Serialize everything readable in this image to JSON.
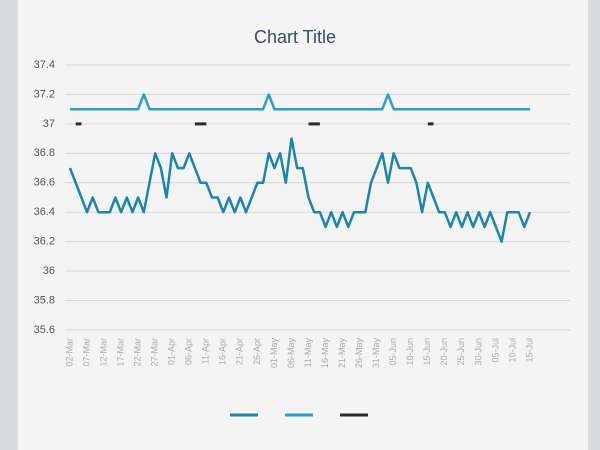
{
  "chart_data": {
    "type": "line",
    "title": "Chart Title",
    "categories": [
      "02-Mar",
      null,
      null,
      "07-Mar",
      null,
      null,
      "12-Mar",
      null,
      null,
      "17-Mar",
      null,
      null,
      "22-Mar",
      null,
      null,
      "27-Mar",
      null,
      null,
      "01-Apr",
      null,
      null,
      "06-Apr",
      null,
      null,
      "11-Apr",
      null,
      null,
      "16-Apr",
      null,
      null,
      "21-Apr",
      null,
      null,
      "26-Apr",
      null,
      null,
      "01-May",
      null,
      null,
      "06-May",
      null,
      null,
      "11-May",
      null,
      null,
      "16-May",
      null,
      null,
      "21-May",
      null,
      null,
      "26-May",
      null,
      null,
      "31-May",
      null,
      null,
      "05-Jun",
      null,
      null,
      "10-Jun",
      null,
      null,
      "15-Jun",
      null,
      null,
      "20-Jun",
      null,
      null,
      "25-Jun",
      null,
      null,
      "30-Jun",
      null,
      null,
      "05-Jul",
      null,
      null,
      "10-Jul",
      null,
      null,
      "15-Jul"
    ],
    "series": [
      {
        "color": "#1b86ad",
        "values": [
          36.7,
          36.6,
          36.5,
          36.4,
          36.5,
          36.4,
          36.4,
          36.4,
          36.5,
          36.4,
          36.5,
          36.4,
          36.5,
          36.4,
          36.6,
          36.8,
          36.7,
          36.5,
          36.8,
          36.7,
          36.7,
          36.8,
          36.7,
          36.6,
          36.6,
          36.5,
          36.5,
          36.4,
          36.5,
          36.4,
          36.5,
          36.4,
          36.5,
          36.6,
          36.6,
          36.8,
          36.7,
          36.8,
          36.6,
          36.9,
          36.7,
          36.7,
          36.5,
          36.4,
          36.4,
          36.3,
          36.4,
          36.3,
          36.4,
          36.3,
          36.4,
          36.4,
          36.4,
          36.6,
          36.7,
          36.8,
          36.6,
          36.8,
          36.7,
          36.7,
          36.7,
          36.6,
          36.4,
          36.6,
          36.5,
          36.4,
          36.4,
          36.3,
          36.4,
          36.3,
          36.4,
          36.3,
          36.4,
          36.3,
          36.4,
          36.3,
          36.2,
          36.4,
          36.4,
          36.4,
          36.3,
          36.4
        ]
      },
      {
        "color": "#2b9fc8",
        "values": [
          37.1,
          37.1,
          37.1,
          37.1,
          37.1,
          37.1,
          37.1,
          37.1,
          37.1,
          37.1,
          37.1,
          37.1,
          37.1,
          37.2,
          37.1,
          37.1,
          37.1,
          37.1,
          37.1,
          37.1,
          37.1,
          37.1,
          37.1,
          37.1,
          37.1,
          37.1,
          37.1,
          37.1,
          37.1,
          37.1,
          37.1,
          37.1,
          37.1,
          37.1,
          37.1,
          37.2,
          37.1,
          37.1,
          37.1,
          37.1,
          37.1,
          37.1,
          37.1,
          37.1,
          37.1,
          37.1,
          37.1,
          37.1,
          37.1,
          37.1,
          37.1,
          37.1,
          37.1,
          37.1,
          37.1,
          37.1,
          37.2,
          37.1,
          37.1,
          37.1,
          37.1,
          37.1,
          37.1,
          37.1,
          37.1,
          37.1,
          37.1,
          37.1,
          37.1,
          37.1,
          37.1,
          37.1,
          37.1,
          37.1,
          37.1,
          37.1,
          37.1,
          37.1,
          37.1,
          37.1,
          37.1,
          37.1
        ]
      },
      {
        "color": "#2a2a2a",
        "values": [
          null,
          37,
          37,
          null,
          null,
          null,
          null,
          null,
          null,
          null,
          null,
          null,
          null,
          null,
          null,
          null,
          null,
          null,
          null,
          null,
          null,
          null,
          37,
          37,
          37,
          null,
          null,
          null,
          null,
          null,
          null,
          null,
          null,
          null,
          null,
          null,
          null,
          null,
          null,
          null,
          null,
          null,
          37,
          37,
          37,
          null,
          null,
          null,
          null,
          null,
          null,
          null,
          null,
          null,
          null,
          null,
          null,
          null,
          null,
          null,
          null,
          null,
          null,
          37,
          37,
          null,
          null,
          null,
          null,
          null,
          null,
          null,
          null,
          null,
          null,
          null,
          null,
          null,
          null,
          null,
          null,
          null
        ]
      }
    ],
    "ylim": [
      35.6,
      37.4
    ],
    "yticks": [
      35.6,
      35.8,
      36,
      36.2,
      36.4,
      36.6,
      36.8,
      37,
      37.2,
      37.4
    ],
    "grid": true
  }
}
